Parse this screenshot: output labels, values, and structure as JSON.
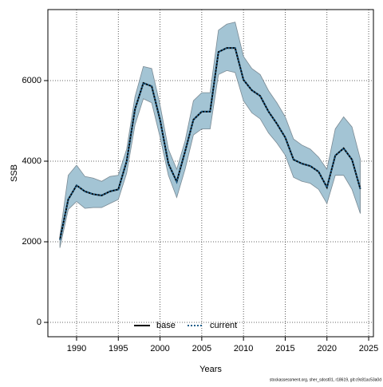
{
  "chart_data": {
    "type": "line",
    "xlabel": "Years",
    "ylabel": "SSB",
    "footnote": "stockassessment.org, sher_sdost01, r18619, git:c9c81ac53a0d",
    "x": [
      1988,
      1989,
      1990,
      1991,
      1992,
      1993,
      1994,
      1995,
      1996,
      1997,
      1998,
      1999,
      2000,
      2001,
      2002,
      2003,
      2004,
      2005,
      2006,
      2007,
      2008,
      2009,
      2010,
      2011,
      2012,
      2013,
      2014,
      2015,
      2016,
      2017,
      2018,
      2019,
      2020,
      2021,
      2022,
      2023,
      2024
    ],
    "series": [
      {
        "name": "base",
        "color": "#000000",
        "style": "solid",
        "values": [
          2050,
          3050,
          3400,
          3250,
          3180,
          3150,
          3250,
          3300,
          4000,
          5290,
          5940,
          5860,
          5030,
          3940,
          3490,
          4240,
          5030,
          5230,
          5230,
          6710,
          6810,
          6810,
          6020,
          5760,
          5620,
          5230,
          4930,
          4590,
          4040,
          3940,
          3880,
          3740,
          3350,
          4140,
          4320,
          4040,
          3310
        ]
      },
      {
        "name": "current",
        "color": "#1f5f8b",
        "style": "dotted",
        "values": [
          2050,
          3050,
          3400,
          3250,
          3180,
          3150,
          3250,
          3300,
          4000,
          5290,
          5940,
          5860,
          5030,
          3940,
          3490,
          4240,
          5030,
          5230,
          5230,
          6710,
          6810,
          6810,
          6020,
          5760,
          5620,
          5230,
          4930,
          4590,
          4040,
          3940,
          3880,
          3740,
          3350,
          4140,
          4320,
          4040,
          3310
        ]
      }
    ],
    "band": {
      "color": "#a3c4d4",
      "lower": [
        1850,
        2800,
        3000,
        2830,
        2850,
        2850,
        2950,
        3050,
        3700,
        4900,
        5550,
        5450,
        4600,
        3650,
        3100,
        3800,
        4650,
        4800,
        4800,
        6150,
        6250,
        6200,
        5500,
        5200,
        5050,
        4700,
        4450,
        4150,
        3600,
        3500,
        3450,
        3300,
        2950,
        3650,
        3650,
        3300,
        2700
      ],
      "upper": [
        2150,
        3650,
        3900,
        3620,
        3580,
        3500,
        3620,
        3650,
        4300,
        5600,
        6350,
        6300,
        5400,
        4300,
        3800,
        4500,
        5500,
        5700,
        5700,
        7250,
        7400,
        7450,
        6600,
        6300,
        6150,
        5750,
        5450,
        5100,
        4550,
        4400,
        4300,
        4100,
        3800,
        4800,
        5100,
        4850,
        4050
      ]
    },
    "xlim": [
      1986.56,
      2025.57
    ],
    "ylim": [
      -356,
      7762
    ],
    "xticks": [
      1990,
      1995,
      2000,
      2005,
      2010,
      2015,
      2020,
      2025
    ],
    "yticks": [
      0,
      2000,
      4000,
      6000
    ],
    "grid": true,
    "legend": "bottom"
  }
}
